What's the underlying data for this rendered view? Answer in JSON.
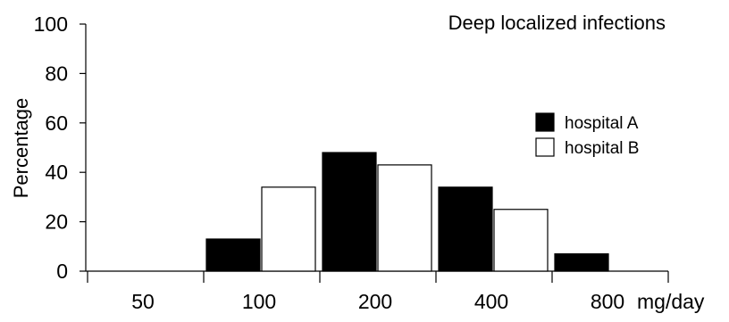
{
  "chart_data": {
    "type": "bar",
    "title": "Deep localized infections",
    "xlabel": "",
    "x_unit": "mg/day",
    "ylabel": "Percentage",
    "ylim": [
      0,
      100
    ],
    "yticks": [
      "0",
      "20",
      "40",
      "60",
      "80",
      "100"
    ],
    "categories": [
      "50",
      "100",
      "200",
      "400",
      "800"
    ],
    "series": [
      {
        "name": "hospital A",
        "values": [
          0,
          13,
          48,
          34,
          7
        ],
        "color": "#000000"
      },
      {
        "name": "hospital B",
        "values": [
          0,
          34,
          43,
          25,
          0
        ],
        "color": "#ffffff"
      }
    ],
    "legend_position": "upper-right",
    "grid": false
  }
}
